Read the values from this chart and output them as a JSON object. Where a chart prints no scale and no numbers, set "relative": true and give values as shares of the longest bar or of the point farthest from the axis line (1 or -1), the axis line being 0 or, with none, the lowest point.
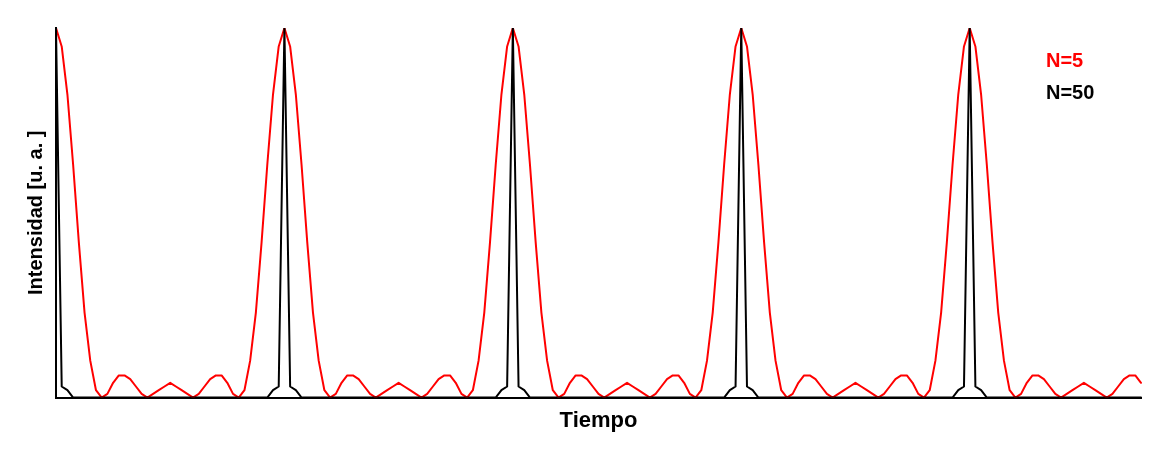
{
  "chart_data": {
    "type": "line",
    "relative": true,
    "xlabel": "Tiempo",
    "ylabel": "Intensidad [u. a. ]",
    "legend": "top right",
    "marker": "none",
    "line_style": "solid",
    "grid": false,
    "categories": [
      null,
      null,
      null,
      null,
      null,
      null,
      null,
      null,
      null,
      null,
      null,
      null,
      null,
      null,
      null,
      null,
      null,
      null,
      null,
      null,
      null,
      null,
      null,
      null,
      null,
      null,
      null,
      null,
      null,
      null,
      null,
      null,
      null,
      null,
      null,
      null,
      null,
      null,
      null,
      null,
      null,
      null,
      null,
      null,
      null,
      null,
      null,
      null,
      null,
      null,
      null,
      null,
      null,
      null,
      null,
      null,
      null,
      null,
      null,
      null,
      null,
      null,
      null,
      null,
      null,
      null,
      null,
      null,
      null,
      null,
      null,
      null,
      null,
      null,
      null,
      null,
      null,
      null,
      null,
      null,
      null,
      null,
      null,
      null,
      null,
      null,
      null,
      null,
      null,
      null,
      null,
      null,
      null,
      null,
      null,
      null,
      null,
      null,
      null,
      null,
      null,
      null,
      null,
      null,
      null,
      null,
      null,
      null,
      null,
      null,
      null,
      null,
      null,
      null,
      null,
      null,
      null,
      null,
      null,
      null,
      null,
      null,
      null,
      null,
      null,
      null,
      null,
      null,
      null,
      null,
      null,
      null,
      null,
      null,
      null,
      null,
      null,
      null,
      null,
      null,
      null,
      null,
      null,
      null,
      null,
      null,
      null,
      null,
      null,
      null,
      null,
      null,
      null,
      null,
      null,
      null,
      null,
      null,
      null,
      null,
      null,
      null,
      null,
      null,
      null,
      null,
      null,
      null,
      null,
      null,
      null,
      null,
      null,
      null,
      null,
      null,
      null,
      null,
      null,
      null,
      null,
      null,
      null,
      null,
      null,
      null,
      null,
      null,
      null,
      null,
      null
    ],
    "series": [
      {
        "name": "N=50",
        "color": "#000000",
        "values": [
          1,
          0.03,
          0.02,
          0,
          0,
          0,
          0,
          0,
          0,
          0,
          0,
          0,
          0,
          0,
          0,
          0,
          0,
          0,
          0,
          0,
          0,
          0,
          0,
          0,
          0,
          0,
          0,
          0,
          0,
          0,
          0,
          0,
          0,
          0,
          0,
          0,
          0,
          0,
          0.02,
          0.03,
          1,
          0.03,
          0.02,
          0,
          0,
          0,
          0,
          0,
          0,
          0,
          0,
          0,
          0,
          0,
          0,
          0,
          0,
          0,
          0,
          0,
          0,
          0,
          0,
          0,
          0,
          0,
          0,
          0,
          0,
          0,
          0,
          0,
          0,
          0,
          0,
          0,
          0,
          0,
          0.02,
          0.03,
          1,
          0.03,
          0.02,
          0,
          0,
          0,
          0,
          0,
          0,
          0,
          0,
          0,
          0,
          0,
          0,
          0,
          0,
          0,
          0,
          0,
          0,
          0,
          0,
          0,
          0,
          0,
          0,
          0,
          0,
          0,
          0,
          0,
          0,
          0,
          0,
          0,
          0,
          0,
          0.02,
          0.03,
          1,
          0.03,
          0.02,
          0,
          0,
          0,
          0,
          0,
          0,
          0,
          0,
          0,
          0,
          0,
          0,
          0,
          0,
          0,
          0,
          0,
          0,
          0,
          0,
          0,
          0,
          0,
          0,
          0,
          0,
          0,
          0,
          0,
          0,
          0,
          0,
          0,
          0,
          0,
          0.02,
          0.03,
          1,
          0.03,
          0.02,
          0,
          0,
          0,
          0,
          0,
          0,
          0,
          0,
          0,
          0,
          0,
          0,
          0,
          0,
          0,
          0,
          0,
          0,
          0,
          0,
          0,
          0,
          0,
          0,
          0,
          0,
          0,
          0
        ]
      },
      {
        "name": "N=5",
        "color": "#ff0000",
        "values": [
          1,
          0.95,
          0.82,
          0.63,
          0.42,
          0.23,
          0.1,
          0.02,
          0,
          0.01,
          0.04,
          0.06,
          0.06,
          0.05,
          0.03,
          0.01,
          0,
          0.01,
          0.02,
          0.03,
          0.04,
          0.03,
          0.02,
          0.01,
          0,
          0.01,
          0.03,
          0.05,
          0.06,
          0.06,
          0.04,
          0.01,
          0,
          0.02,
          0.1,
          0.23,
          0.42,
          0.63,
          0.82,
          0.95,
          1,
          0.95,
          0.82,
          0.63,
          0.42,
          0.23,
          0.1,
          0.02,
          0,
          0.01,
          0.04,
          0.06,
          0.06,
          0.05,
          0.03,
          0.01,
          0,
          0.01,
          0.02,
          0.03,
          0.04,
          0.03,
          0.02,
          0.01,
          0,
          0.01,
          0.03,
          0.05,
          0.06,
          0.06,
          0.04,
          0.01,
          0,
          0.02,
          0.1,
          0.23,
          0.42,
          0.63,
          0.82,
          0.95,
          1,
          0.95,
          0.82,
          0.63,
          0.42,
          0.23,
          0.1,
          0.02,
          0,
          0.01,
          0.04,
          0.06,
          0.06,
          0.05,
          0.03,
          0.01,
          0,
          0.01,
          0.02,
          0.03,
          0.04,
          0.03,
          0.02,
          0.01,
          0,
          0.01,
          0.03,
          0.05,
          0.06,
          0.06,
          0.04,
          0.01,
          0,
          0.02,
          0.1,
          0.23,
          0.42,
          0.63,
          0.82,
          0.95,
          1,
          0.95,
          0.82,
          0.63,
          0.42,
          0.23,
          0.1,
          0.02,
          0,
          0.01,
          0.04,
          0.06,
          0.06,
          0.05,
          0.03,
          0.01,
          0,
          0.01,
          0.02,
          0.03,
          0.04,
          0.03,
          0.02,
          0.01,
          0,
          0.01,
          0.03,
          0.05,
          0.06,
          0.06,
          0.04,
          0.01,
          0,
          0.02,
          0.1,
          0.23,
          0.42,
          0.63,
          0.82,
          0.95,
          1,
          0.95,
          0.82,
          0.63,
          0.42,
          0.23,
          0.1,
          0.02,
          0,
          0.01,
          0.04,
          0.06,
          0.06,
          0.05,
          0.03,
          0.01,
          0,
          0.01,
          0.02,
          0.03,
          0.04,
          0.03,
          0.02,
          0.01,
          0,
          0.01,
          0.03,
          0.05,
          0.06,
          0.06,
          0.04
        ]
      }
    ]
  }
}
